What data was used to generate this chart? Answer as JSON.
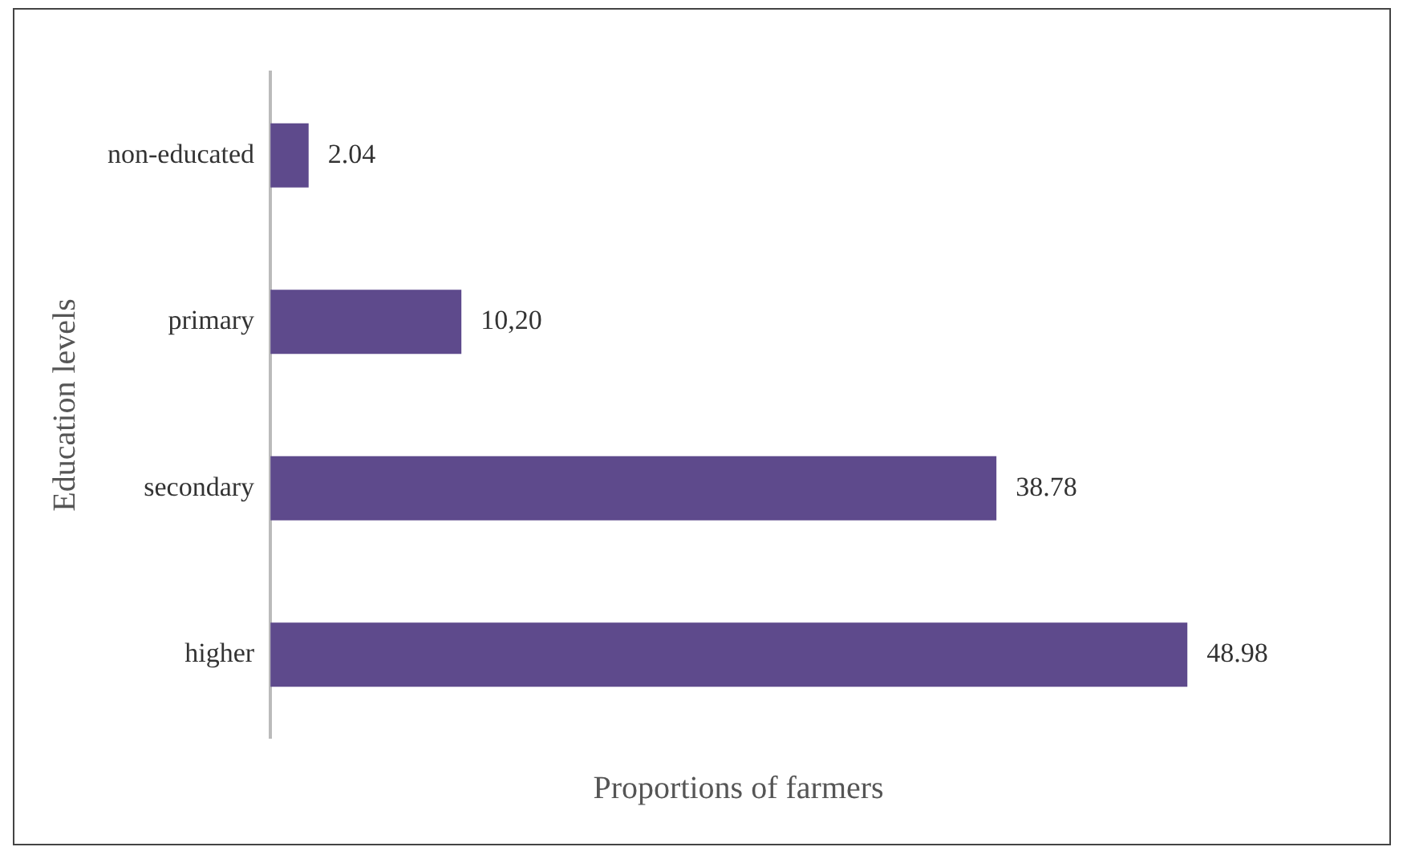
{
  "chart_data": {
    "type": "bar",
    "orientation": "horizontal",
    "xlabel": "Proportions of farmers",
    "ylabel": "Education levels",
    "categories": [
      "non-educated",
      "primary",
      "secondary",
      "higher"
    ],
    "values": [
      2.04,
      10.2,
      38.78,
      48.98
    ],
    "value_labels": [
      "2.04",
      "10,20",
      "38.78",
      "48.98"
    ],
    "color": "#5e4a8c",
    "grid": false,
    "legend": false
  }
}
